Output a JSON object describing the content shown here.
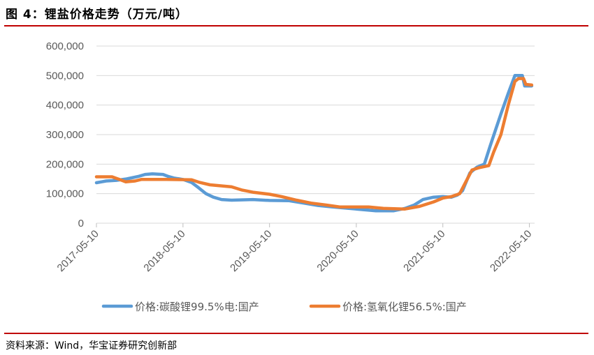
{
  "title": "图 4：锂盐价格走势（万元/吨）",
  "source": "资料来源：Wind，华宝证券研究创新部",
  "colors": {
    "rule": "#c00000",
    "series1": "#5b9bd5",
    "series2": "#ed7d31",
    "grid": "#d9d9d9",
    "axis": "#595959"
  },
  "chart_data": {
    "type": "line",
    "title": "",
    "xlabel": "",
    "ylabel": "",
    "ylim": [
      0,
      600000
    ],
    "yticks": [
      "0",
      "100,000",
      "200,000",
      "300,000",
      "400,000",
      "500,000",
      "600,000"
    ],
    "xticks": [
      "2017-05-10",
      "2018-05-10",
      "2019-05-10",
      "2020-05-10",
      "2021-05-10",
      "2022-05-10"
    ],
    "grid": "horizontal",
    "legend": "bottom",
    "series": [
      {
        "name": "价格:碳酸锂99.5%电:国产",
        "color": "#5b9bd5",
        "points": [
          [
            "2017-05-10",
            137000
          ],
          [
            "2017-06-01",
            140000
          ],
          [
            "2017-06-20",
            143000
          ],
          [
            "2017-08-01",
            145000
          ],
          [
            "2017-09-15",
            150000
          ],
          [
            "2017-11-01",
            158000
          ],
          [
            "2017-12-01",
            165000
          ],
          [
            "2018-01-01",
            167000
          ],
          [
            "2018-02-15",
            165000
          ],
          [
            "2018-03-10",
            158000
          ],
          [
            "2018-04-01",
            153000
          ],
          [
            "2018-05-10",
            148000
          ],
          [
            "2018-06-15",
            138000
          ],
          [
            "2018-07-15",
            120000
          ],
          [
            "2018-08-15",
            100000
          ],
          [
            "2018-09-15",
            88000
          ],
          [
            "2018-10-20",
            80000
          ],
          [
            "2018-12-01",
            78000
          ],
          [
            "2019-03-01",
            80000
          ],
          [
            "2019-05-10",
            77000
          ],
          [
            "2019-08-01",
            76000
          ],
          [
            "2019-10-01",
            68000
          ],
          [
            "2019-12-01",
            60000
          ],
          [
            "2020-02-01",
            55000
          ],
          [
            "2020-05-10",
            48000
          ],
          [
            "2020-08-01",
            42000
          ],
          [
            "2020-10-15",
            42000
          ],
          [
            "2020-12-01",
            50000
          ],
          [
            "2021-01-10",
            62000
          ],
          [
            "2021-02-15",
            80000
          ],
          [
            "2021-04-01",
            88000
          ],
          [
            "2021-05-10",
            90000
          ],
          [
            "2021-06-15",
            88000
          ],
          [
            "2021-07-10",
            95000
          ],
          [
            "2021-08-01",
            110000
          ],
          [
            "2021-09-01",
            170000
          ],
          [
            "2021-10-01",
            190000
          ],
          [
            "2021-11-01",
            200000
          ],
          [
            "2021-11-25",
            260000
          ],
          [
            "2021-12-20",
            320000
          ],
          [
            "2022-01-10",
            370000
          ],
          [
            "2022-02-10",
            440000
          ],
          [
            "2022-03-10",
            500000
          ],
          [
            "2022-04-10",
            500000
          ],
          [
            "2022-04-20",
            465000
          ],
          [
            "2022-05-20",
            465000
          ]
        ]
      },
      {
        "name": "价格:氢氧化锂56.5%:国产",
        "color": "#ed7d31",
        "points": [
          [
            "2017-05-10",
            157000
          ],
          [
            "2017-07-15",
            157000
          ],
          [
            "2017-08-15",
            148000
          ],
          [
            "2017-09-10",
            140000
          ],
          [
            "2017-10-20",
            143000
          ],
          [
            "2017-11-15",
            148000
          ],
          [
            "2018-03-01",
            148000
          ],
          [
            "2018-06-15",
            147000
          ],
          [
            "2018-07-20",
            138000
          ],
          [
            "2018-09-01",
            130000
          ],
          [
            "2018-12-01",
            123000
          ],
          [
            "2019-01-15",
            112000
          ],
          [
            "2019-03-01",
            105000
          ],
          [
            "2019-05-10",
            98000
          ],
          [
            "2019-07-01",
            90000
          ],
          [
            "2019-09-01",
            78000
          ],
          [
            "2019-11-01",
            68000
          ],
          [
            "2020-01-01",
            62000
          ],
          [
            "2020-03-01",
            55000
          ],
          [
            "2020-05-10",
            55000
          ],
          [
            "2020-07-01",
            55000
          ],
          [
            "2020-09-01",
            50000
          ],
          [
            "2020-12-01",
            48000
          ],
          [
            "2021-02-01",
            57000
          ],
          [
            "2021-04-01",
            72000
          ],
          [
            "2021-05-10",
            85000
          ],
          [
            "2021-06-15",
            90000
          ],
          [
            "2021-07-20",
            100000
          ],
          [
            "2021-08-15",
            140000
          ],
          [
            "2021-09-10",
            180000
          ],
          [
            "2021-10-10",
            188000
          ],
          [
            "2021-11-20",
            195000
          ],
          [
            "2021-12-10",
            240000
          ],
          [
            "2022-01-10",
            300000
          ],
          [
            "2022-02-10",
            400000
          ],
          [
            "2022-03-10",
            480000
          ],
          [
            "2022-03-25",
            490000
          ],
          [
            "2022-04-15",
            490000
          ],
          [
            "2022-04-25",
            470000
          ],
          [
            "2022-05-20",
            468000
          ]
        ]
      }
    ]
  }
}
